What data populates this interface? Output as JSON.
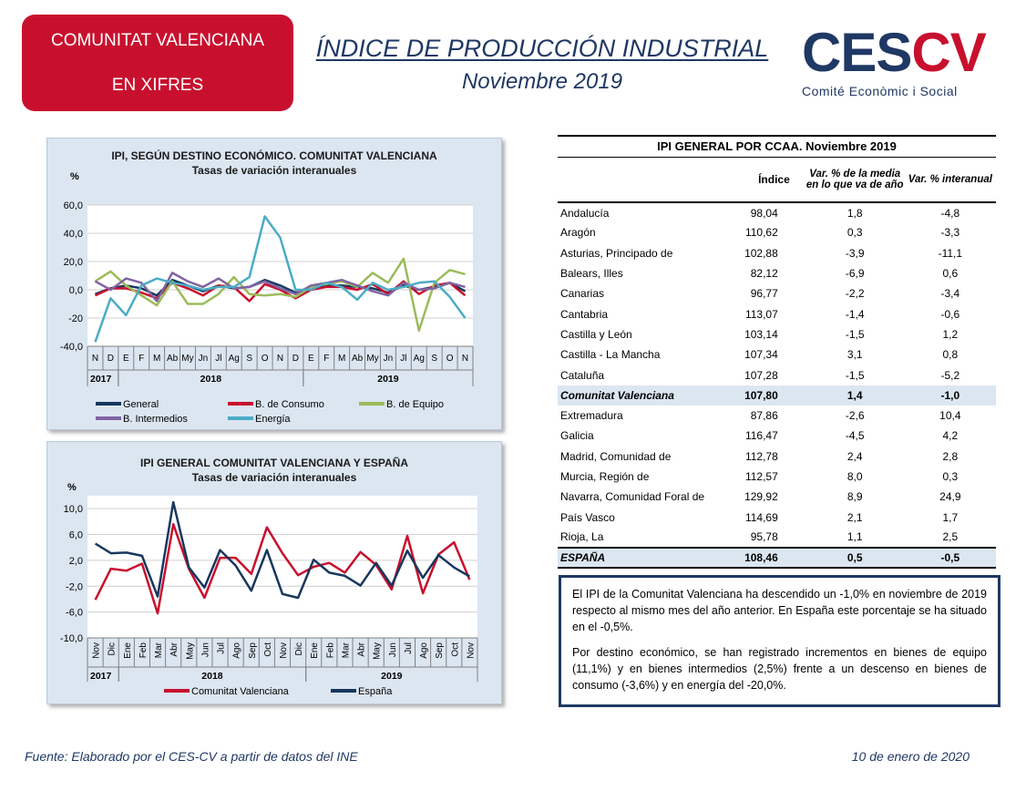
{
  "header": {
    "badge_line1": "COMUNITAT VALENCIANA",
    "badge_line2": "EN XIFRES",
    "title": "ÍNDICE DE PRODUCCIÓN INDUSTRIAL",
    "subtitle": "Noviembre 2019",
    "logo_ces": "CES",
    "logo_cv": "CV",
    "logo_sub": "Comité Econòmic i Social"
  },
  "colors": {
    "badge_bg": "#c8102e",
    "navy": "#1f3864",
    "chart_bg": "#dce6f1",
    "general": "#17375e",
    "consumo": "#c8102e",
    "equipo": "#9bbb59",
    "intermedios": "#8064a2",
    "energia": "#4bacc6"
  },
  "chart_data": [
    {
      "type": "line",
      "title": "IPI, SEGÚN DESTINO ECONÓMICO. COMUNITAT VALENCIANA",
      "subtitle": "Tasas de variación interanuales",
      "ylabel": "%",
      "ylim": [
        -40,
        60
      ],
      "yticks": [
        "60,0",
        "40,0",
        "20,0",
        "0,0",
        "-20",
        "-40,0"
      ],
      "ytick_values": [
        60,
        40,
        20,
        0,
        -20,
        -40
      ],
      "categories": [
        "N",
        "D",
        "E",
        "F",
        "M",
        "Ab",
        "My",
        "Jn",
        "Jl",
        "Ag",
        "S",
        "O",
        "N",
        "D",
        "E",
        "F",
        "M",
        "Ab",
        "My",
        "Jn",
        "Jl",
        "Ag",
        "S",
        "O",
        "N"
      ],
      "year_groups": [
        {
          "label": "2017",
          "start": 0,
          "end": 1
        },
        {
          "label": "2018",
          "start": 2,
          "end": 13
        },
        {
          "label": "2019",
          "start": 14,
          "end": 24
        }
      ],
      "grid": true,
      "legend": "bottom",
      "series": [
        {
          "name": "General",
          "color": "#17375e",
          "values": [
            -3,
            1,
            3,
            1,
            -4,
            7,
            3,
            -1,
            3,
            1,
            2,
            7,
            3,
            -2,
            0,
            3,
            3,
            2,
            1,
            -2,
            3,
            0,
            2,
            5,
            -1
          ]
        },
        {
          "name": "B. de Consumo",
          "color": "#c8102e",
          "values": [
            -4,
            1,
            1,
            -2,
            -6,
            5,
            1,
            -4,
            3,
            2,
            -8,
            4,
            0,
            -6,
            0,
            2,
            2,
            0,
            4,
            -3,
            6,
            -3,
            3,
            5,
            -4
          ]
        },
        {
          "name": "B. de Equipo",
          "color": "#9bbb59",
          "values": [
            6,
            13,
            3,
            -4,
            -11,
            6,
            -10,
            -10,
            -3,
            9,
            -3,
            -4,
            -3,
            -5,
            2,
            4,
            6,
            2,
            12,
            5,
            22,
            -29,
            5,
            14,
            11
          ]
        },
        {
          "name": "B. Intermedios",
          "color": "#8064a2",
          "values": [
            6,
            0,
            8,
            5,
            -8,
            12,
            6,
            2,
            8,
            1,
            2,
            6,
            1,
            -3,
            3,
            5,
            7,
            3,
            -1,
            -4,
            5,
            0,
            1,
            5,
            2
          ]
        },
        {
          "name": "Energía",
          "color": "#4bacc6",
          "values": [
            -37,
            -6,
            -18,
            3,
            8,
            5,
            3,
            0,
            2,
            2,
            9,
            52,
            37,
            0,
            0,
            5,
            2,
            -7,
            5,
            0,
            2,
            5,
            6,
            -5,
            -20
          ]
        }
      ]
    },
    {
      "type": "line",
      "title": "IPI GENERAL COMUNITAT VALENCIANA Y ESPAÑA",
      "subtitle": "Tasas de variación interanuales",
      "ylabel": "%",
      "ylim": [
        -10,
        12
      ],
      "yticks": [
        "10,0",
        "6,0",
        "2,0",
        "-2,0",
        "-6,0",
        "-10,0"
      ],
      "ytick_values": [
        10,
        6,
        2,
        -2,
        -6,
        -10
      ],
      "categories": [
        "Nov",
        "Dic",
        "Ene",
        "Feb",
        "Mar",
        "Abr",
        "May",
        "Jun",
        "Jul",
        "Ago",
        "Sep",
        "Oct",
        "Nov",
        "Dic",
        "Ene",
        "Feb",
        "Mar",
        "Abr",
        "May",
        "Jun",
        "Jul",
        "Ago",
        "Sep",
        "Oct",
        "Nov"
      ],
      "year_groups": [
        {
          "label": "2017",
          "start": 0,
          "end": 1
        },
        {
          "label": "2018",
          "start": 2,
          "end": 13
        },
        {
          "label": "2019",
          "start": 14,
          "end": 24
        }
      ],
      "grid": true,
      "legend": "bottom",
      "series": [
        {
          "name": "Comunitat Valenciana",
          "color": "#c8102e",
          "values": [
            -4.1,
            0.7,
            0.4,
            1.5,
            -6.2,
            7.6,
            0.7,
            -3.8,
            2.4,
            2.4,
            -0.1,
            7.1,
            3.1,
            -0.3,
            1.0,
            1.6,
            0.1,
            3.3,
            1.3,
            -2.5,
            5.8,
            -3.1,
            2.9,
            4.8,
            -1.0
          ]
        },
        {
          "name": "España",
          "color": "#17375e",
          "values": [
            4.6,
            3.1,
            3.2,
            2.7,
            -3.6,
            11.0,
            0.9,
            -2.2,
            3.6,
            1.2,
            -2.7,
            3.6,
            -3.2,
            -3.8,
            2.1,
            0.1,
            -0.4,
            -1.9,
            1.6,
            -1.9,
            3.5,
            -0.7,
            2.8,
            0.9,
            -0.5
          ]
        }
      ]
    }
  ],
  "table": {
    "title": "IPI GENERAL POR CCAA. Noviembre 2019",
    "col_indice": "Índice",
    "col_media": "Var. % de la media en lo que va de año",
    "col_interanual": "Var. % interanual",
    "rows": [
      {
        "name": "Andalucía",
        "indice": "98,04",
        "media": "1,8",
        "inter": "-4,8"
      },
      {
        "name": "Aragón",
        "indice": "110,62",
        "media": "0,3",
        "inter": "-3,3"
      },
      {
        "name": "Asturias, Principado de",
        "indice": "102,88",
        "media": "-3,9",
        "inter": "-11,1"
      },
      {
        "name": "Balears, Illes",
        "indice": "82,12",
        "media": "-6,9",
        "inter": "0,6"
      },
      {
        "name": "Canarias",
        "indice": "96,77",
        "media": "-2,2",
        "inter": "-3,4"
      },
      {
        "name": "Cantabria",
        "indice": "113,07",
        "media": "-1,4",
        "inter": "-0,6"
      },
      {
        "name": "Castilla y León",
        "indice": "103,14",
        "media": "-1,5",
        "inter": "1,2"
      },
      {
        "name": "Castilla - La Mancha",
        "indice": "107,34",
        "media": "3,1",
        "inter": "0,8"
      },
      {
        "name": "Cataluña",
        "indice": "107,28",
        "media": "-1,5",
        "inter": "-5,2"
      },
      {
        "name": "Comunitat Valenciana",
        "indice": "107,80",
        "media": "1,4",
        "inter": "-1,0",
        "highlight": true
      },
      {
        "name": "Extremadura",
        "indice": "87,86",
        "media": "-2,6",
        "inter": "10,4"
      },
      {
        "name": "Galicia",
        "indice": "116,47",
        "media": "-4,5",
        "inter": "4,2"
      },
      {
        "name": "Madrid, Comunidad de",
        "indice": "112,78",
        "media": "2,4",
        "inter": "2,8"
      },
      {
        "name": "Murcia, Región de",
        "indice": "112,57",
        "media": "8,0",
        "inter": "0,3"
      },
      {
        "name": "Navarra, Comunidad Foral de",
        "indice": "129,92",
        "media": "8,9",
        "inter": "24,9"
      },
      {
        "name": "País Vasco",
        "indice": "114,69",
        "media": "2,1",
        "inter": "1,7"
      },
      {
        "name": "Rioja, La",
        "indice": "95,78",
        "media": "1,1",
        "inter": "2,5"
      }
    ],
    "total": {
      "name": "ESPAÑA",
      "indice": "108,46",
      "media": "0,5",
      "inter": "-0,5"
    }
  },
  "text": {
    "p1": "El IPI de la Comunitat Valenciana ha descendido un -1,0% en noviembre de 2019 respecto al mismo mes del año anterior. En España este porcentaje se ha situado en el -0,5%.",
    "p2": "Por destino económico, se han registrado incrementos en bienes de equipo (11,1%) y en bienes intermedios (2,5%) frente a un descenso en bienes de consumo (-3,6%) y en energía del -20,0%."
  },
  "footer": {
    "source": "Fuente: Elaborado por el CES-CV a partir de datos del INE",
    "date": "10 de enero de 2020"
  }
}
